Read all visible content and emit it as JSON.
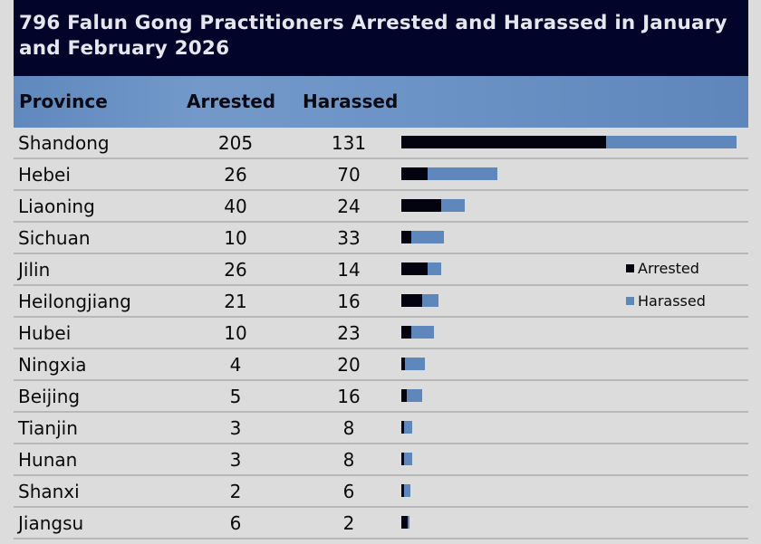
{
  "title": "796 Falun Gong Practitioners Arrested and Harassed in January and February 2026",
  "headers": {
    "province": "Province",
    "arrested": "Arrested",
    "harassed": "Harassed"
  },
  "legend": [
    {
      "label": "Arrested",
      "color": "#03030f"
    },
    {
      "label": "Harassed",
      "color": "#5e88bb"
    }
  ],
  "rows": [
    {
      "province": "Shandong",
      "arrested": 205,
      "harassed": 131
    },
    {
      "province": "Hebei",
      "arrested": 26,
      "harassed": 70
    },
    {
      "province": "Liaoning",
      "arrested": 40,
      "harassed": 24
    },
    {
      "province": "Sichuan",
      "arrested": 10,
      "harassed": 33
    },
    {
      "province": "Jilin",
      "arrested": 26,
      "harassed": 14
    },
    {
      "province": "Heilongjiang",
      "arrested": 21,
      "harassed": 16
    },
    {
      "province": "Hubei",
      "arrested": 10,
      "harassed": 23
    },
    {
      "province": "Ningxia",
      "arrested": 4,
      "harassed": 20
    },
    {
      "province": "Beijing",
      "arrested": 5,
      "harassed": 16
    },
    {
      "province": "Tianjin",
      "arrested": 3,
      "harassed": 8
    },
    {
      "province": "Hunan",
      "arrested": 3,
      "harassed": 8
    },
    {
      "province": "Shanxi",
      "arrested": 2,
      "harassed": 6
    },
    {
      "province": "Jiangsu",
      "arrested": 6,
      "harassed": 2
    }
  ],
  "chart_data": {
    "type": "bar",
    "stacked": true,
    "orientation": "horizontal",
    "title": "796 Falun Gong Practitioners Arrested and Harassed in January and February 2026",
    "categories": [
      "Shandong",
      "Hebei",
      "Liaoning",
      "Sichuan",
      "Jilin",
      "Heilongjiang",
      "Hubei",
      "Ningxia",
      "Beijing",
      "Tianjin",
      "Hunan",
      "Shanxi",
      "Jiangsu"
    ],
    "series": [
      {
        "name": "Arrested",
        "color": "#03030f",
        "values": [
          205,
          26,
          40,
          10,
          26,
          21,
          10,
          4,
          5,
          3,
          3,
          2,
          6
        ]
      },
      {
        "name": "Harassed",
        "color": "#5e88bb",
        "values": [
          131,
          70,
          24,
          33,
          14,
          16,
          23,
          20,
          16,
          8,
          8,
          6,
          2
        ]
      }
    ],
    "xlabel": "",
    "ylabel": "Province",
    "legend_position": "right",
    "grid": false
  }
}
